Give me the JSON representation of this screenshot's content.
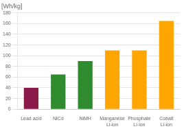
{
  "chart_data": {
    "type": "bar",
    "ylabel": "[Wh/kg]",
    "categories": [
      "Lead acid",
      "NiCd",
      "NiMH",
      "Manganese\nLi-ion",
      "Phosphate\nLi-ion",
      "Cobalt\nLi-ion"
    ],
    "values": [
      40,
      65,
      90,
      110,
      110,
      165
    ],
    "colors": [
      "#8B1A4A",
      "#2E8B2E",
      "#2E8B2E",
      "#FFA500",
      "#FFA500",
      "#FFA500"
    ],
    "ylim": [
      0,
      180
    ],
    "yticks": [
      0,
      20,
      40,
      60,
      80,
      100,
      120,
      140,
      160,
      180
    ],
    "grid": true
  }
}
